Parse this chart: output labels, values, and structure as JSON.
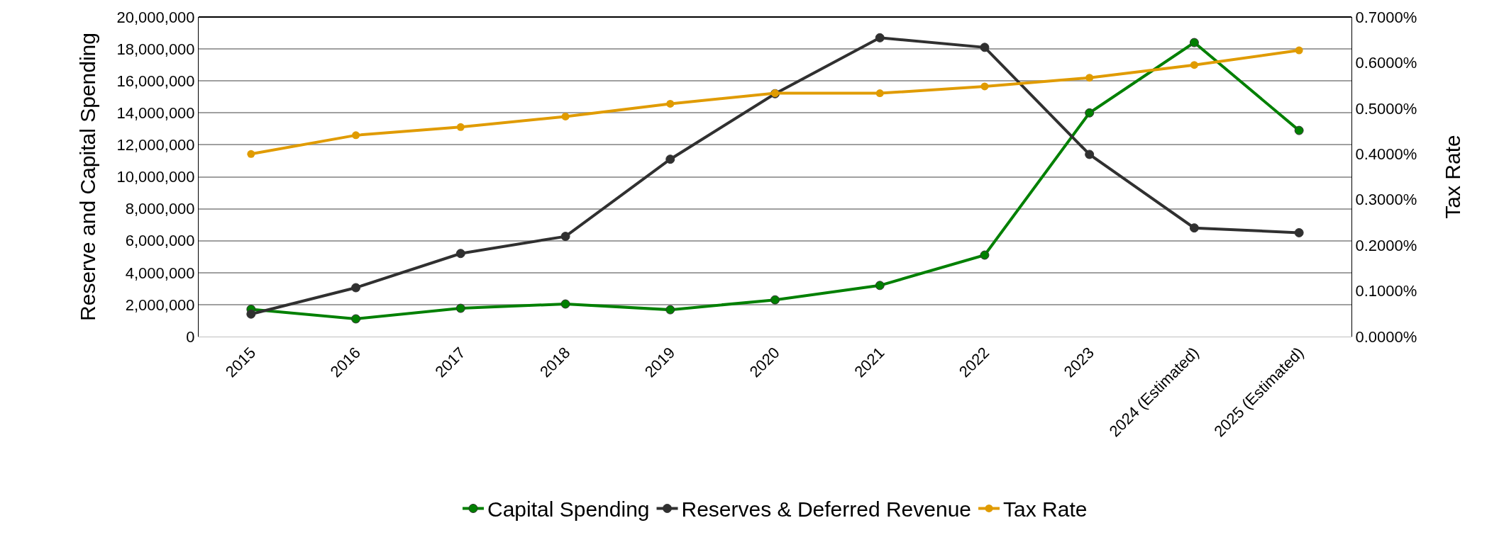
{
  "chart_data": {
    "type": "line",
    "categories": [
      "2015",
      "2016",
      "2017",
      "2018",
      "2019",
      "2020",
      "2021",
      "2022",
      "2023",
      "2024 (Estimated)",
      "2025 (Estimated)"
    ],
    "ylabel": "Reserve and Capital Spending",
    "y2label": "Tax Rate",
    "series": [
      {
        "name": "Capital Spending",
        "color": "#008000",
        "values": [
          1710000,
          1110000,
          1770000,
          2040000,
          1680000,
          2300000,
          3200000,
          5100000,
          14000000,
          18400000,
          12900000
        ]
      },
      {
        "name": "Reserves & Deferred Revenue",
        "color": "#303030",
        "values": [
          1410000,
          3060000,
          5200000,
          6270000,
          11100000,
          15200000,
          18700000,
          18100000,
          11400000,
          6800000,
          6500000
        ]
      },
      {
        "name": "Tax Rate",
        "color": "#e09b00",
        "axis": "y2",
        "values": [
          0.4,
          0.441,
          0.459,
          0.482,
          0.51,
          0.533,
          0.533,
          0.548,
          0.567,
          0.595,
          0.627
        ]
      }
    ],
    "ylim": [
      0,
      20000000
    ],
    "yticks": [
      {
        "value": 0,
        "label": "0"
      },
      {
        "value": 2000000,
        "label": "2,000,000"
      },
      {
        "value": 4000000,
        "label": "4,000,000"
      },
      {
        "value": 6000000,
        "label": "6,000,000"
      },
      {
        "value": 8000000,
        "label": "8,000,000"
      },
      {
        "value": 10000000,
        "label": "10,000,000"
      },
      {
        "value": 12000000,
        "label": "12,000,000"
      },
      {
        "value": 14000000,
        "label": "14,000,000"
      },
      {
        "value": 16000000,
        "label": "16,000,000"
      },
      {
        "value": 18000000,
        "label": "18,000,000"
      },
      {
        "value": 20000000,
        "label": "20,000,000"
      }
    ],
    "y2lim": [
      0,
      0.7
    ],
    "y2ticks": [
      {
        "value": 0,
        "label": "0.0000%"
      },
      {
        "value": 0.1,
        "label": "0.1000%"
      },
      {
        "value": 0.2,
        "label": "0.2000%"
      },
      {
        "value": 0.3,
        "label": "0.3000%"
      },
      {
        "value": 0.4,
        "label": "0.4000%"
      },
      {
        "value": 0.5,
        "label": "0.5000%"
      },
      {
        "value": 0.6,
        "label": "0.6000%"
      },
      {
        "value": 0.7,
        "label": "0.7000%"
      }
    ],
    "grid": "y",
    "legend": "bottom",
    "marker": "circle",
    "line_style": "solid"
  }
}
